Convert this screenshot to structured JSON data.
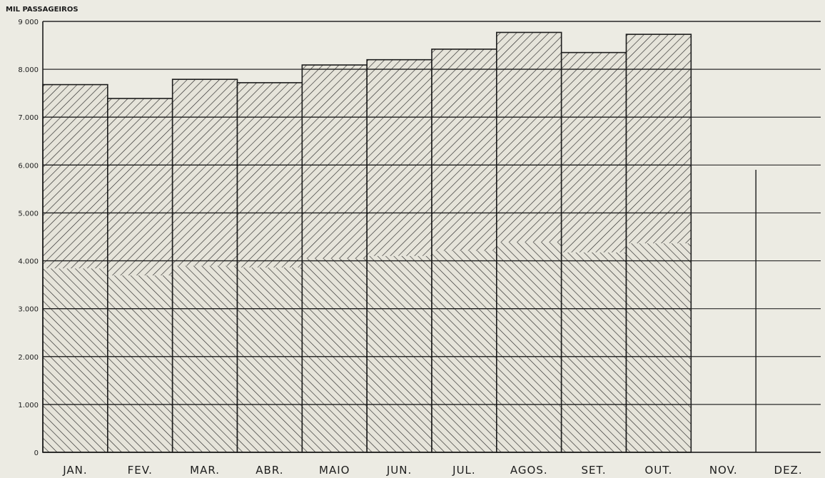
{
  "chart_data": {
    "type": "bar",
    "title": "",
    "ylabel": "MIL PASSAGEIROS",
    "xlabel": "",
    "ylim": [
      0,
      9000
    ],
    "yticks": [
      "0",
      "1.000",
      "2.000",
      "3.000",
      "4.000",
      "5.000",
      "6.000",
      "7.000",
      "8.000",
      "9 000"
    ],
    "categories": [
      "JAN.",
      "FEV.",
      "MAR.",
      "ABR.",
      "MAIO",
      "JUN.",
      "JUL.",
      "AGOS.",
      "SET.",
      "OUT.",
      "NOV.",
      "DEZ."
    ],
    "values": [
      7680,
      7390,
      7790,
      7720,
      8090,
      8200,
      8420,
      8770,
      8350,
      8730,
      null,
      null
    ],
    "grid": true,
    "legend": "none",
    "colors": {
      "background": "#ecebe3",
      "ink": "#1c1c1c"
    }
  }
}
